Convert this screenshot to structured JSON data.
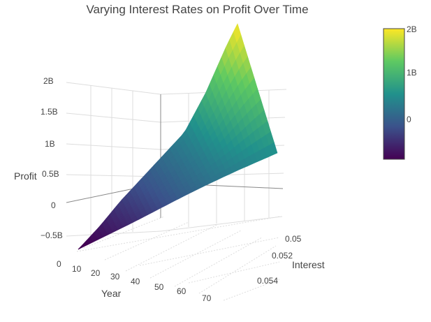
{
  "chart_data": {
    "type": "surface",
    "title": "Varying Interest Rates on Profit Over Time",
    "axes": {
      "x": {
        "label": "Year",
        "range": [
          0,
          75
        ],
        "ticks": [
          "0",
          "10",
          "20",
          "30",
          "40",
          "50",
          "60",
          "70"
        ]
      },
      "y": {
        "label": "Interest",
        "range": [
          0.05,
          0.055
        ],
        "ticks": [
          "0.05",
          "0.052",
          "0.054"
        ]
      },
      "z": {
        "label": "Profit",
        "range": [
          -1000000000,
          2000000000
        ],
        "ticks": [
          "−0.5B",
          "0",
          "0.5B",
          "1B",
          "1.5B",
          "2B"
        ]
      }
    },
    "colorbar": {
      "ticks": [
        "0",
        "1B",
        "2B"
      ],
      "range": [
        -800000000,
        2000000000
      ]
    },
    "colorscale": "Viridis",
    "colors": [
      "#440154",
      "#3b528b",
      "#21918c",
      "#5ec962",
      "#fde725"
    ],
    "surface_profile": {
      "year": [
        0,
        10,
        20,
        30,
        40,
        50,
        60,
        70,
        75
      ],
      "profit_at_min_interest": [
        -850000000,
        -650000000,
        -450000000,
        -200000000,
        50000000,
        250000000,
        400000000,
        500000000,
        550000000
      ],
      "profit_at_max_interest": [
        -850000000,
        -600000000,
        -300000000,
        -50000000,
        200000000,
        450000000,
        1000000000,
        1700000000,
        2000000000
      ]
    },
    "grid": true,
    "legend": "none"
  }
}
